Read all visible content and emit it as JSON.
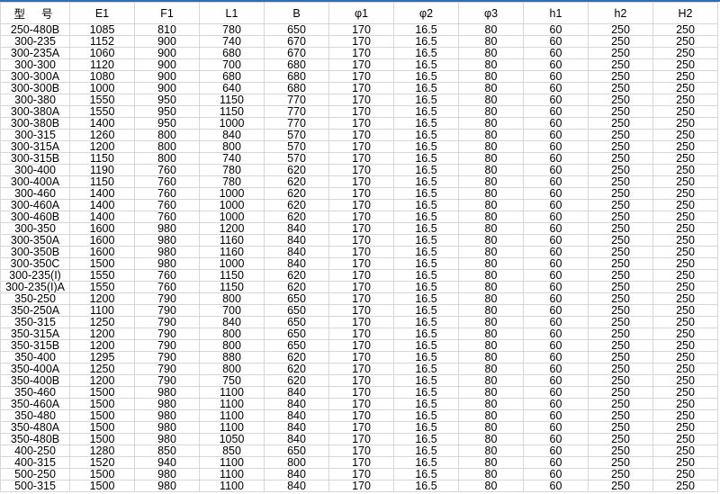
{
  "table": {
    "headers": [
      "型号",
      "E1",
      "F1",
      "L1",
      "B",
      "φ1",
      "φ2",
      "φ3",
      "h1",
      "h2",
      "H2"
    ],
    "rows": [
      [
        "250-480B",
        "1085",
        "810",
        "780",
        "650",
        "170",
        "16.5",
        "80",
        "60",
        "250",
        "250"
      ],
      [
        "300-235",
        "1152",
        "900",
        "740",
        "670",
        "170",
        "16.5",
        "80",
        "60",
        "250",
        "250"
      ],
      [
        "300-235A",
        "1060",
        "900",
        "680",
        "670",
        "170",
        "16.5",
        "80",
        "60",
        "250",
        "250"
      ],
      [
        "300-300",
        "1120",
        "900",
        "700",
        "680",
        "170",
        "16.5",
        "80",
        "60",
        "250",
        "250"
      ],
      [
        "300-300A",
        "1080",
        "900",
        "680",
        "680",
        "170",
        "16.5",
        "80",
        "60",
        "250",
        "250"
      ],
      [
        "300-300B",
        "1000",
        "900",
        "640",
        "680",
        "170",
        "16.5",
        "80",
        "60",
        "250",
        "250"
      ],
      [
        "300-380",
        "1550",
        "950",
        "1150",
        "770",
        "170",
        "16.5",
        "80",
        "60",
        "250",
        "250"
      ],
      [
        "300-380A",
        "1550",
        "950",
        "1150",
        "770",
        "170",
        "16.5",
        "80",
        "60",
        "250",
        "250"
      ],
      [
        "300-380B",
        "1400",
        "950",
        "1000",
        "770",
        "170",
        "16.5",
        "80",
        "60",
        "250",
        "250"
      ],
      [
        "300-315",
        "1260",
        "800",
        "840",
        "570",
        "170",
        "16.5",
        "80",
        "60",
        "250",
        "250"
      ],
      [
        "300-315A",
        "1200",
        "800",
        "800",
        "570",
        "170",
        "16.5",
        "80",
        "60",
        "250",
        "250"
      ],
      [
        "300-315B",
        "1150",
        "800",
        "740",
        "570",
        "170",
        "16.5",
        "80",
        "60",
        "250",
        "250"
      ],
      [
        "300-400",
        "1190",
        "760",
        "780",
        "620",
        "170",
        "16.5",
        "80",
        "60",
        "250",
        "250"
      ],
      [
        "300-400A",
        "1150",
        "760",
        "780",
        "620",
        "170",
        "16.5",
        "80",
        "60",
        "250",
        "250"
      ],
      [
        "300-460",
        "1400",
        "760",
        "1000",
        "620",
        "170",
        "16.5",
        "80",
        "60",
        "250",
        "250"
      ],
      [
        "300-460A",
        "1400",
        "760",
        "1000",
        "620",
        "170",
        "16.5",
        "80",
        "60",
        "250",
        "250"
      ],
      [
        "300-460B",
        "1400",
        "760",
        "1000",
        "620",
        "170",
        "16.5",
        "80",
        "60",
        "250",
        "250"
      ],
      [
        "300-350",
        "1600",
        "980",
        "1200",
        "840",
        "170",
        "16.5",
        "80",
        "60",
        "250",
        "250"
      ],
      [
        "300-350A",
        "1600",
        "980",
        "1160",
        "840",
        "170",
        "16.5",
        "80",
        "60",
        "250",
        "250"
      ],
      [
        "300-350B",
        "1600",
        "980",
        "1160",
        "840",
        "170",
        "16.5",
        "80",
        "60",
        "250",
        "250"
      ],
      [
        "300-350C",
        "1500",
        "980",
        "1000",
        "840",
        "170",
        "16.5",
        "80",
        "60",
        "250",
        "250"
      ],
      [
        "300-235(I)",
        "1550",
        "760",
        "1150",
        "620",
        "170",
        "16.5",
        "80",
        "60",
        "250",
        "250"
      ],
      [
        "300-235(I)A",
        "1550",
        "760",
        "1150",
        "620",
        "170",
        "16.5",
        "80",
        "60",
        "250",
        "250"
      ],
      [
        "350-250",
        "1200",
        "790",
        "800",
        "650",
        "170",
        "16.5",
        "80",
        "60",
        "250",
        "250"
      ],
      [
        "350-250A",
        "1100",
        "790",
        "700",
        "650",
        "170",
        "16.5",
        "80",
        "60",
        "250",
        "250"
      ],
      [
        "350-315",
        "1250",
        "790",
        "840",
        "650",
        "170",
        "16.5",
        "80",
        "60",
        "250",
        "250"
      ],
      [
        "350-315A",
        "1200",
        "790",
        "800",
        "650",
        "170",
        "16.5",
        "80",
        "60",
        "250",
        "250"
      ],
      [
        "350-315B",
        "1200",
        "790",
        "800",
        "650",
        "170",
        "16.5",
        "80",
        "60",
        "250",
        "250"
      ],
      [
        "350-400",
        "1295",
        "790",
        "880",
        "620",
        "170",
        "16.5",
        "80",
        "60",
        "250",
        "250"
      ],
      [
        "350-400A",
        "1250",
        "790",
        "800",
        "620",
        "170",
        "16.5",
        "80",
        "60",
        "250",
        "250"
      ],
      [
        "350-400B",
        "1200",
        "790",
        "750",
        "620",
        "170",
        "16.5",
        "80",
        "60",
        "250",
        "250"
      ],
      [
        "350-460",
        "1500",
        "980",
        "1100",
        "840",
        "170",
        "16.5",
        "80",
        "60",
        "250",
        "250"
      ],
      [
        "350-460A",
        "1500",
        "980",
        "1100",
        "840",
        "170",
        "16.5",
        "80",
        "60",
        "250",
        "250"
      ],
      [
        "350-480",
        "1500",
        "980",
        "1100",
        "840",
        "170",
        "16.5",
        "80",
        "60",
        "250",
        "250"
      ],
      [
        "350-480A",
        "1500",
        "980",
        "1100",
        "840",
        "170",
        "16.5",
        "80",
        "60",
        "250",
        "250"
      ],
      [
        "350-480B",
        "1500",
        "980",
        "1050",
        "840",
        "170",
        "16.5",
        "80",
        "60",
        "250",
        "250"
      ],
      [
        "400-250",
        "1280",
        "850",
        "850",
        "650",
        "170",
        "16.5",
        "80",
        "60",
        "250",
        "250"
      ],
      [
        "400-315",
        "1520",
        "940",
        "1100",
        "800",
        "170",
        "16.5",
        "80",
        "60",
        "250",
        "250"
      ],
      [
        "500-250",
        "1500",
        "980",
        "1100",
        "840",
        "170",
        "16.5",
        "80",
        "60",
        "250",
        "250"
      ],
      [
        "500-315",
        "1500",
        "980",
        "1100",
        "840",
        "170",
        "16.5",
        "80",
        "60",
        "250",
        "250"
      ]
    ]
  },
  "colors": {
    "top_border": "#2f6eb5",
    "grid": "#d6d6d6"
  }
}
